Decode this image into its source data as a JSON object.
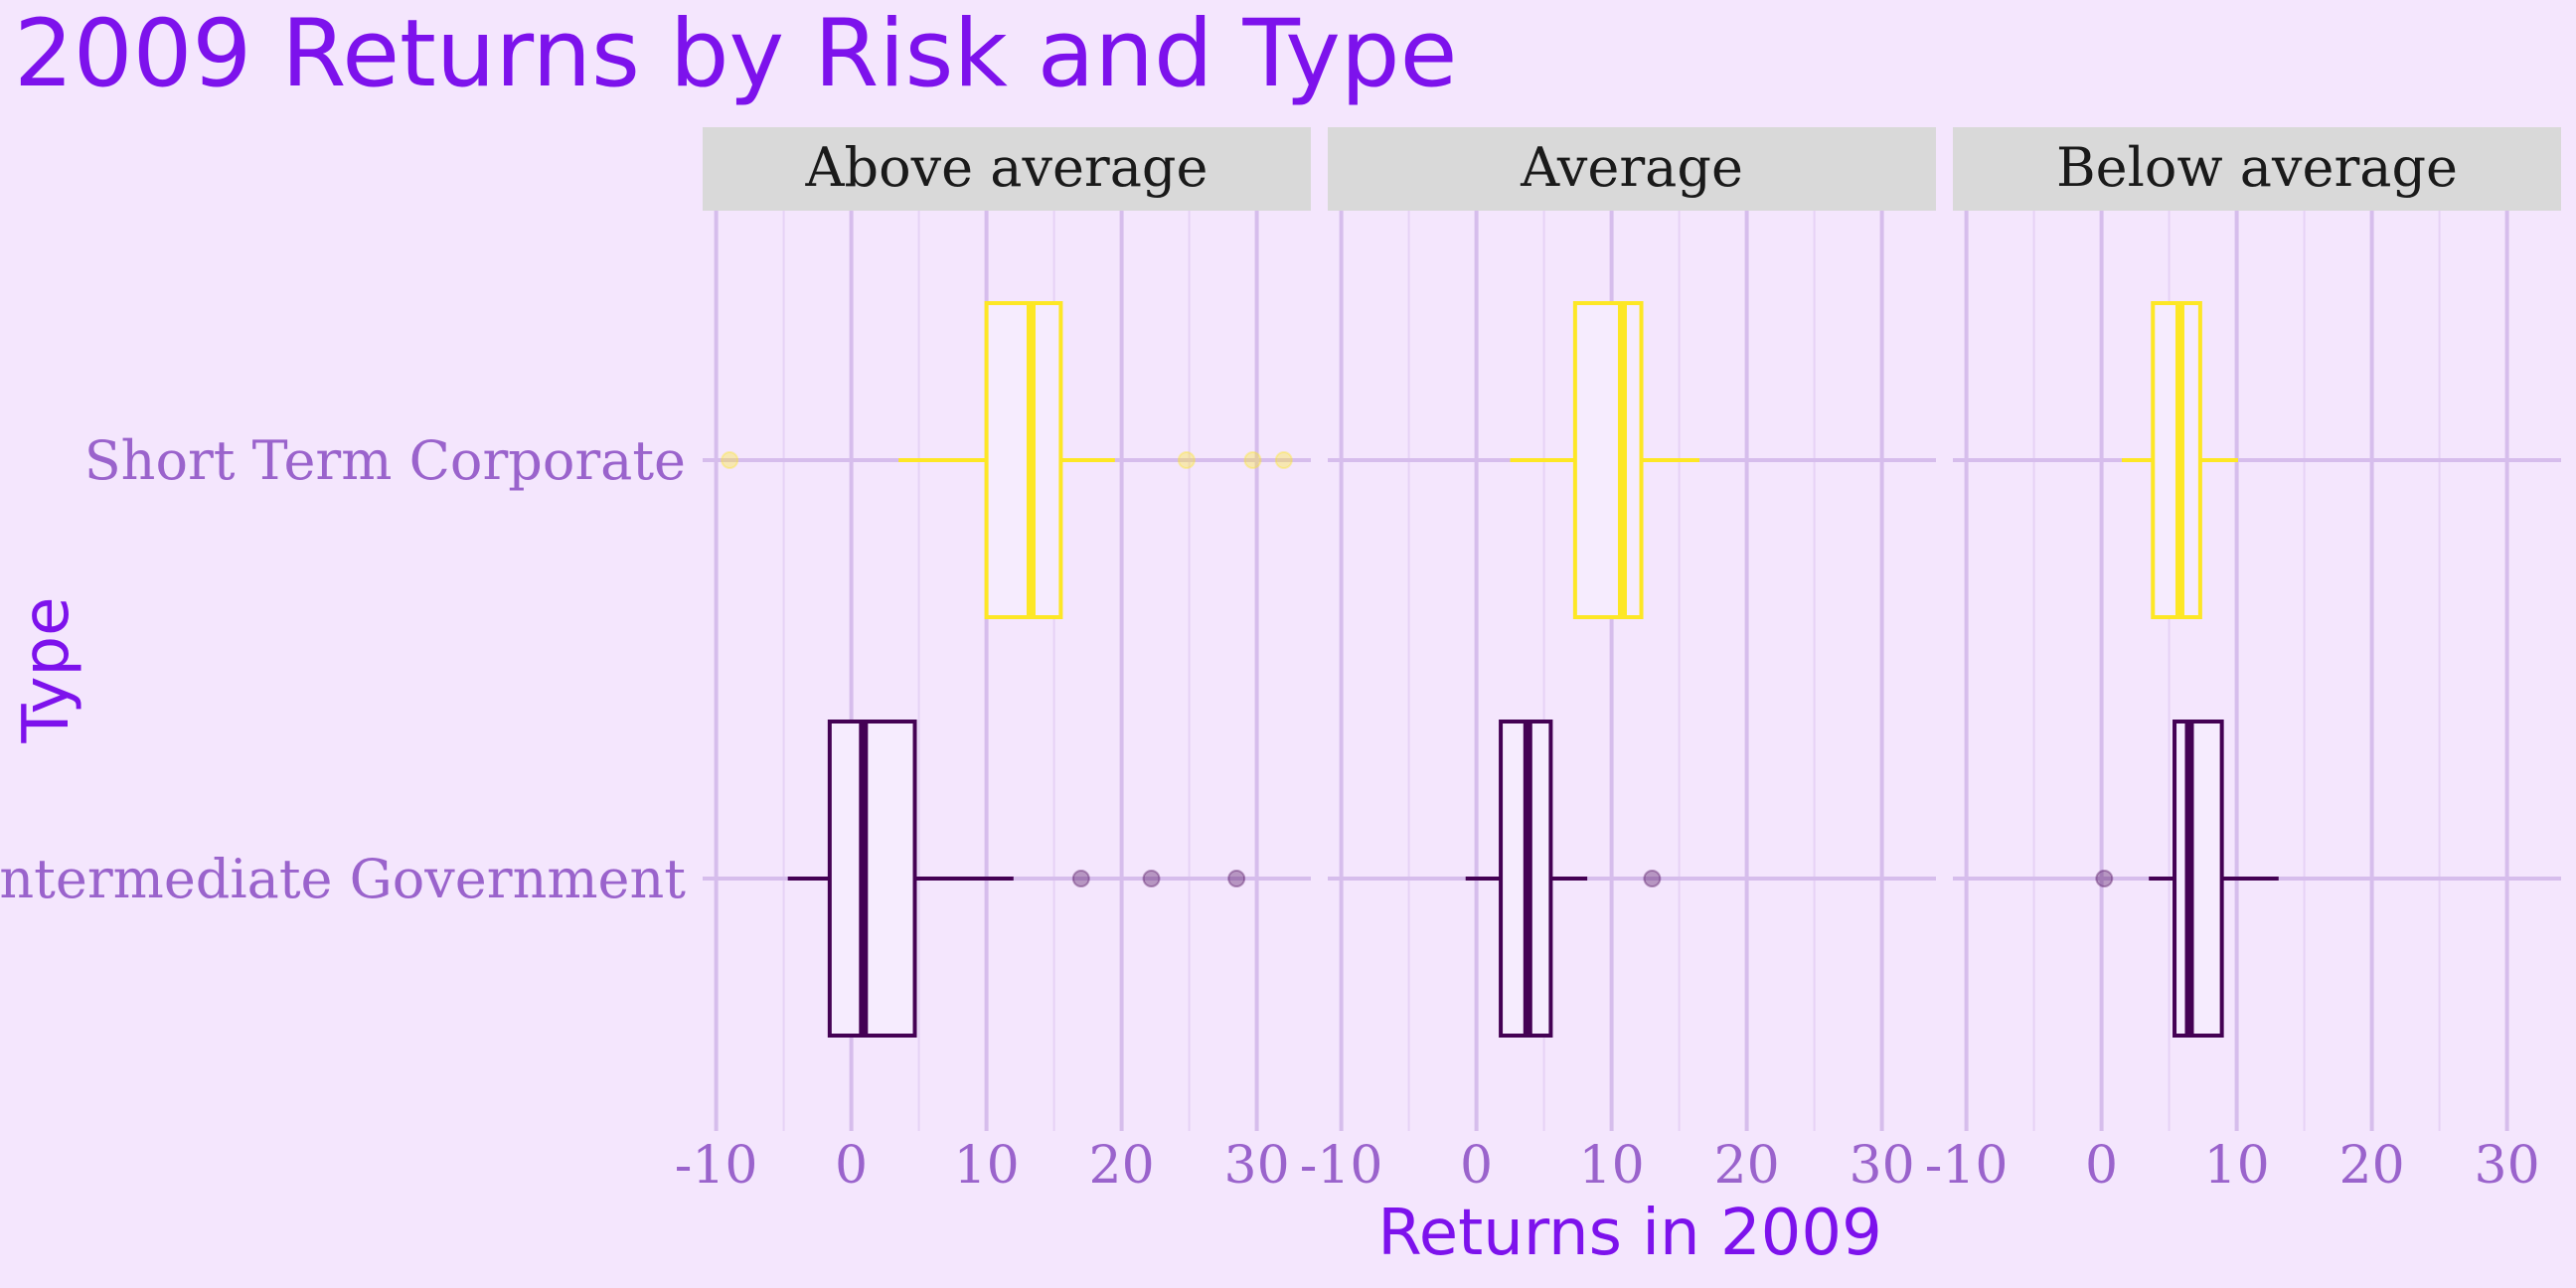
{
  "chart_data": {
    "type": "boxplot",
    "title": "2009 Returns by Risk and Type",
    "xlabel": "Returns in 2009",
    "ylabel": "Type",
    "xlim": [
      -11,
      34
    ],
    "x_ticks": [
      -10,
      0,
      10,
      20,
      30
    ],
    "x_tick_labels": [
      "-10",
      "0",
      "10",
      "20",
      "30"
    ],
    "categories": [
      "Short Term Corporate",
      "Intermediate Government"
    ],
    "panels": [
      "Above average",
      "Average",
      "Below average"
    ],
    "colors": {
      "Short Term Corporate": "#fde725",
      "Intermediate Government": "#440154",
      "background": "#f4e6fd",
      "strip": "#d9d9d9",
      "grid_major": "#d6bdec",
      "grid_minor": "#e6d2f6",
      "title": "#7d12ec",
      "tick": "#9a63cc"
    },
    "grid": true,
    "legend": "none",
    "series": [
      {
        "panel": "Above average",
        "category": "Short Term Corporate",
        "whisker_low": 3.5,
        "q1": 10,
        "median": 13.3,
        "q3": 15.5,
        "whisker_high": 19.5,
        "outliers": [
          -9,
          24.8,
          29.7,
          32
        ]
      },
      {
        "panel": "Above average",
        "category": "Intermediate Government",
        "whisker_low": -4.7,
        "q1": -1.6,
        "median": 0.9,
        "q3": 4.7,
        "whisker_high": 12,
        "outliers": [
          17,
          22.2,
          28.5
        ]
      },
      {
        "panel": "Average",
        "category": "Short Term Corporate",
        "whisker_low": 2.5,
        "q1": 7.3,
        "median": 10.8,
        "q3": 12.2,
        "whisker_high": 16.5,
        "outliers": []
      },
      {
        "panel": "Average",
        "category": "Intermediate Government",
        "whisker_low": -0.8,
        "q1": 1.8,
        "median": 3.8,
        "q3": 5.5,
        "whisker_high": 8.2,
        "outliers": [
          13
        ]
      },
      {
        "panel": "Below average",
        "category": "Short Term Corporate",
        "whisker_low": 1.5,
        "q1": 3.8,
        "median": 5.8,
        "q3": 7.3,
        "whisker_high": 10.1,
        "outliers": []
      },
      {
        "panel": "Below average",
        "category": "Intermediate Government",
        "whisker_low": 3.5,
        "q1": 5.4,
        "median": 6.5,
        "q3": 8.9,
        "whisker_high": 13.1,
        "outliers": [
          0.2
        ]
      }
    ]
  }
}
